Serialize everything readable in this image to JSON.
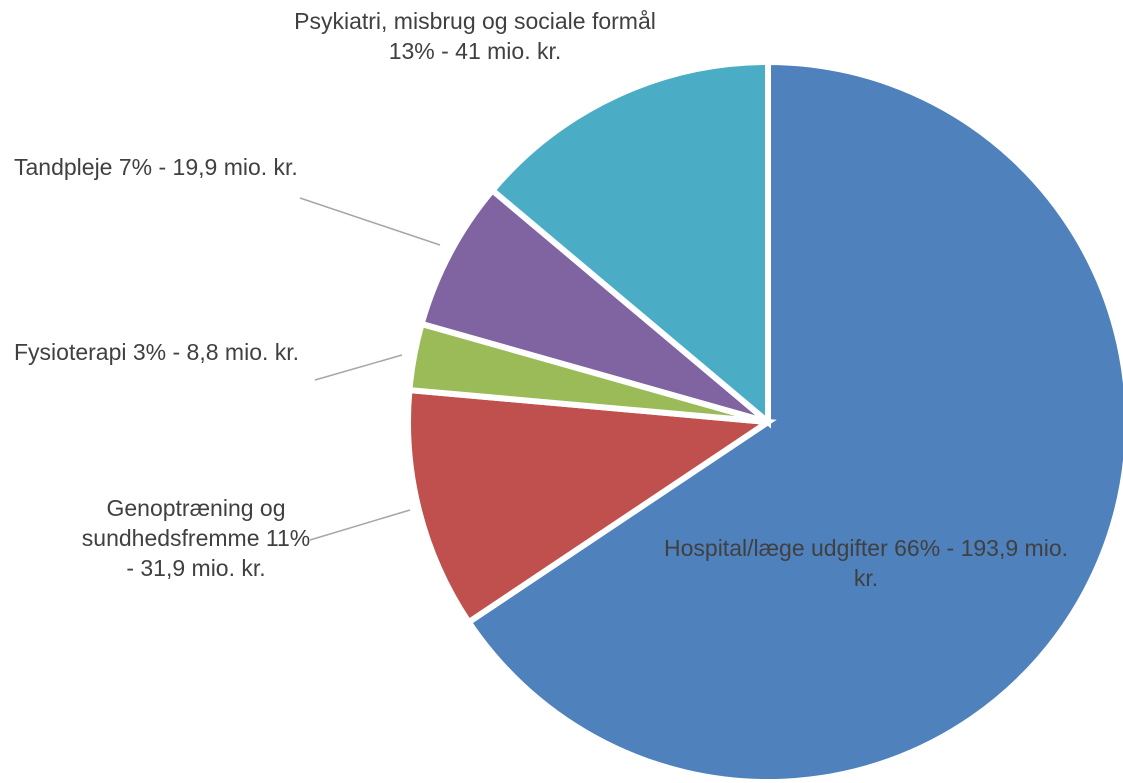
{
  "chart_data": {
    "type": "pie",
    "categories": [
      "Hospital/læge udgifter",
      "Genoptræning og sundhedsfremme",
      "Fysioterapi",
      "Tandpleje",
      "Psykiatri, misbrug og sociale formål"
    ],
    "values": [
      193.9,
      31.9,
      8.8,
      19.9,
      41
    ],
    "value_labels": [
      "66% - 193,9 mio. kr.",
      "11% - 31,9 mio. kr.",
      "3% - 8,8 mio. kr.",
      "7% - 19,9 mio. kr.",
      "13% - 41 mio. kr."
    ],
    "colors": [
      "#4f81bd",
      "#c0504d",
      "#9bbb59",
      "#8064a2",
      "#4bacc6"
    ]
  }
}
